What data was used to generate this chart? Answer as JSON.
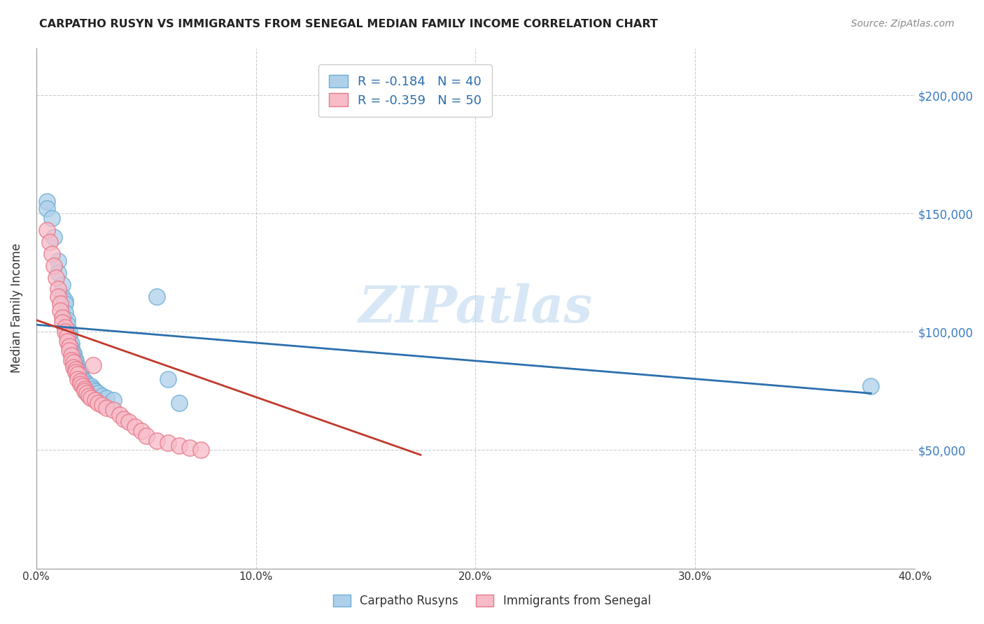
{
  "title": "CARPATHO RUSYN VS IMMIGRANTS FROM SENEGAL MEDIAN FAMILY INCOME CORRELATION CHART",
  "source": "Source: ZipAtlas.com",
  "xlabel_bottom": "",
  "ylabel": "Median Family Income",
  "xlim": [
    0.0,
    0.4
  ],
  "ylim": [
    0,
    220000
  ],
  "xtick_labels": [
    "0.0%",
    "10.0%",
    "20.0%",
    "30.0%",
    "40.0%"
  ],
  "xtick_vals": [
    0.0,
    0.1,
    0.2,
    0.3,
    0.4
  ],
  "ytick_vals": [
    0,
    50000,
    100000,
    150000,
    200000
  ],
  "ytick_labels": [
    "",
    "$50,000",
    "$100,000",
    "$150,000",
    "$200,000"
  ],
  "background_color": "#ffffff",
  "grid_color": "#cccccc",
  "watermark": "ZIPatlas",
  "legend_entries": [
    {
      "label": "R = -0.184   N = 40",
      "color": "#adc8e8"
    },
    {
      "label": "R = -0.359   N = 50",
      "color": "#f4a8b8"
    }
  ],
  "series": [
    {
      "name": "Carpatho Rusyns",
      "color": "#6baed6",
      "marker_face": "#afd0ea",
      "marker_edge": "#6baed6",
      "R": -0.184,
      "N": 40,
      "line_color": "#2c6fad",
      "trend_x": [
        0.0,
        0.38
      ],
      "trend_y": [
        103000,
        74000
      ],
      "x": [
        0.005,
        0.005,
        0.007,
        0.008,
        0.01,
        0.01,
        0.012,
        0.012,
        0.013,
        0.013,
        0.013,
        0.014,
        0.014,
        0.015,
        0.015,
        0.015,
        0.016,
        0.016,
        0.017,
        0.017,
        0.018,
        0.018,
        0.019,
        0.019,
        0.02,
        0.02,
        0.021,
        0.022,
        0.023,
        0.025,
        0.026,
        0.027,
        0.028,
        0.03,
        0.032,
        0.035,
        0.055,
        0.06,
        0.065,
        0.38
      ],
      "y": [
        155000,
        152000,
        148000,
        140000,
        130000,
        125000,
        120000,
        115000,
        113000,
        112000,
        108000,
        105000,
        103000,
        100000,
        98000,
        96000,
        95000,
        93000,
        91000,
        90000,
        88000,
        87000,
        85000,
        84000,
        83000,
        82000,
        80000,
        79000,
        78000,
        77000,
        76000,
        75000,
        74000,
        73000,
        72000,
        71000,
        115000,
        80000,
        70000,
        77000
      ]
    },
    {
      "name": "Immigrants from Senegal",
      "color": "#e8788a",
      "marker_face": "#f7bcc8",
      "marker_edge": "#e8788a",
      "R": -0.359,
      "N": 50,
      "line_color": "#c0392b",
      "trend_x": [
        0.0,
        0.175
      ],
      "trend_y": [
        105000,
        48000
      ],
      "x": [
        0.005,
        0.006,
        0.007,
        0.008,
        0.009,
        0.01,
        0.01,
        0.011,
        0.011,
        0.012,
        0.012,
        0.013,
        0.013,
        0.014,
        0.014,
        0.015,
        0.015,
        0.016,
        0.016,
        0.017,
        0.017,
        0.018,
        0.018,
        0.019,
        0.019,
        0.02,
        0.02,
        0.021,
        0.022,
        0.022,
        0.023,
        0.024,
        0.025,
        0.026,
        0.027,
        0.028,
        0.03,
        0.032,
        0.035,
        0.038,
        0.04,
        0.042,
        0.045,
        0.048,
        0.05,
        0.055,
        0.06,
        0.065,
        0.07,
        0.075
      ],
      "y": [
        143000,
        138000,
        133000,
        128000,
        123000,
        118000,
        115000,
        112000,
        109000,
        106000,
        104000,
        102000,
        100000,
        98000,
        96000,
        94000,
        92000,
        90000,
        88000,
        87000,
        85000,
        84000,
        83000,
        82000,
        80000,
        79000,
        78000,
        77000,
        76000,
        75000,
        74000,
        73000,
        72000,
        86000,
        71000,
        70000,
        69000,
        68000,
        67000,
        65000,
        63000,
        62000,
        60000,
        58000,
        56000,
        54000,
        53000,
        52000,
        51000,
        50000
      ]
    }
  ]
}
